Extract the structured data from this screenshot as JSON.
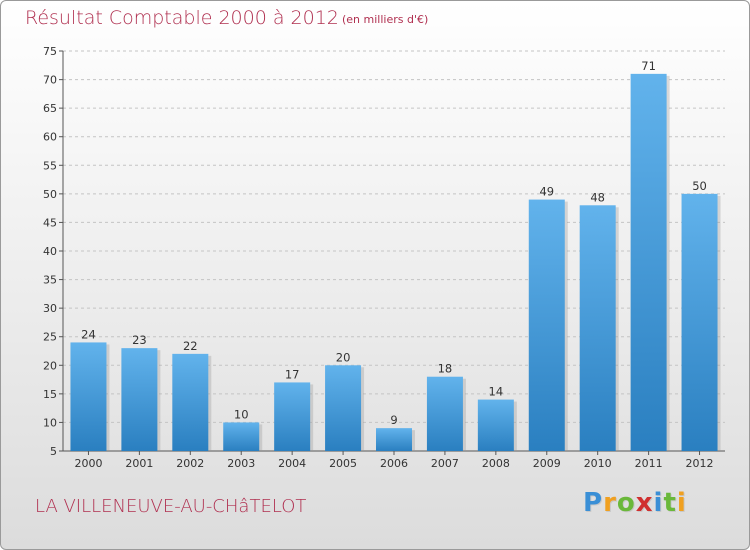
{
  "header": {
    "title": "Résultat Comptable 2000 à 2012",
    "subtitle": "(en milliers d'€)"
  },
  "footer": {
    "commune": "LA VILLENEUVE-AU-CHâTELOT",
    "logo_letters": [
      "P",
      "r",
      "o",
      "x",
      "i",
      "t",
      "i"
    ],
    "logo_colors": [
      "#3a8fd6",
      "#f0a020",
      "#6ab83a",
      "#d03030",
      "#3a8fd6",
      "#6ab83a",
      "#f0a020"
    ]
  },
  "chart_data": {
    "type": "bar",
    "categories": [
      "2000",
      "2001",
      "2002",
      "2003",
      "2004",
      "2005",
      "2006",
      "2007",
      "2008",
      "2009",
      "2010",
      "2011",
      "2012"
    ],
    "values": [
      24,
      23,
      22,
      10,
      17,
      20,
      9,
      18,
      14,
      49,
      48,
      71,
      50
    ],
    "ylim": [
      5,
      75
    ],
    "yticks": [
      5,
      10,
      15,
      20,
      25,
      30,
      35,
      40,
      45,
      50,
      55,
      60,
      65,
      70,
      75
    ],
    "grid": "horizontal dashed",
    "bar_color": "#3d9be0",
    "bar_color_top": "#62b3ec",
    "bar_color_bottom": "#2a7fc0"
  }
}
